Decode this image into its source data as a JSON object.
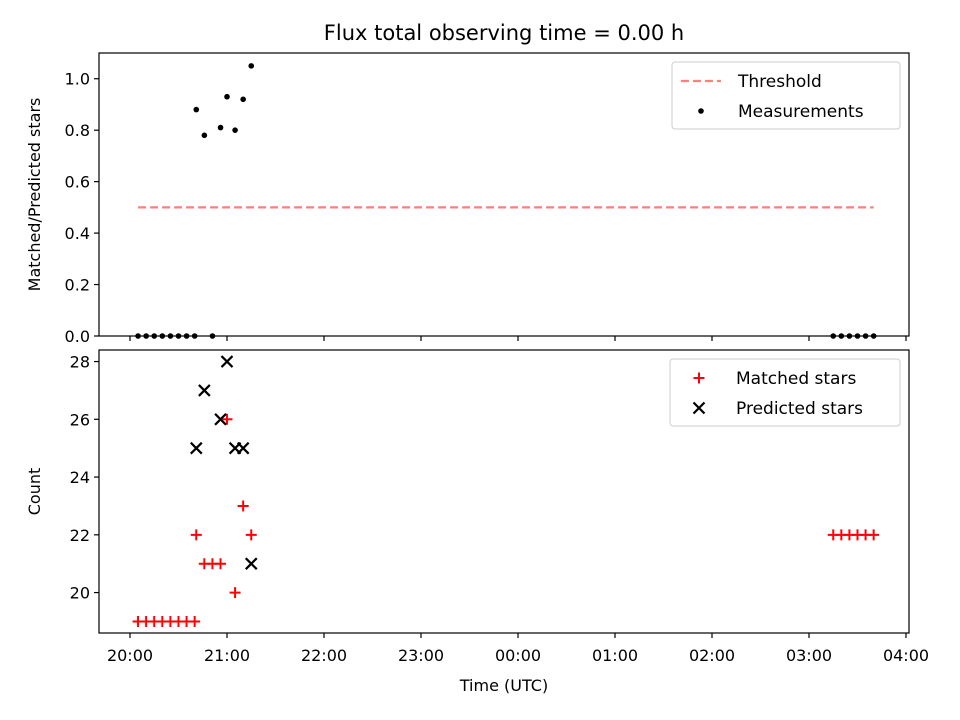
{
  "figure": {
    "title": "Flux total observing time = 0.00 h"
  },
  "chart_data": [
    {
      "type": "scatter",
      "ylabel": "Matched/Predicted stars",
      "xlabel": "",
      "xlim": [
        "20:00",
        "04:00"
      ],
      "ylim": [
        0,
        1.1
      ],
      "yticks": [
        0.0,
        0.2,
        0.4,
        0.6,
        0.8,
        1.0
      ],
      "ytick_labels": [
        "0.0",
        "0.2",
        "0.4",
        "0.6",
        "0.8",
        "1.0"
      ],
      "xticks": [
        "20:00",
        "21:00",
        "22:00",
        "23:00",
        "00:00",
        "01:00",
        "02:00",
        "03:00",
        "04:00"
      ],
      "legend": {
        "placement": "top-right",
        "entries": [
          "Threshold",
          "Measurements"
        ]
      },
      "threshold": {
        "name": "Threshold",
        "value": 0.5,
        "x_range": [
          "20:05",
          "03:40"
        ],
        "color": "#ff7f7f",
        "style": "dashed"
      },
      "series": [
        {
          "name": "Measurements",
          "color": "#000000",
          "marker": "dot",
          "points": [
            [
              "20:05",
              0.0
            ],
            [
              "20:10",
              0.0
            ],
            [
              "20:15",
              0.0
            ],
            [
              "20:20",
              0.0
            ],
            [
              "20:25",
              0.0
            ],
            [
              "20:30",
              0.0
            ],
            [
              "20:35",
              0.0
            ],
            [
              "20:40",
              0.0
            ],
            [
              "20:41",
              0.88
            ],
            [
              "20:46",
              0.78
            ],
            [
              "20:51",
              0.0
            ],
            [
              "20:56",
              0.81
            ],
            [
              "21:00",
              0.93
            ],
            [
              "21:05",
              0.8
            ],
            [
              "21:10",
              0.92
            ],
            [
              "21:15",
              1.05
            ],
            [
              "03:15",
              0.0
            ],
            [
              "03:20",
              0.0
            ],
            [
              "03:25",
              0.0
            ],
            [
              "03:30",
              0.0
            ],
            [
              "03:35",
              0.0
            ],
            [
              "03:40",
              0.0
            ]
          ]
        }
      ]
    },
    {
      "type": "scatter",
      "ylabel": "Count",
      "xlabel": "Time (UTC)",
      "xlim": [
        "20:00",
        "04:00"
      ],
      "ylim": [
        18.6,
        28.4
      ],
      "yticks": [
        20,
        22,
        24,
        26,
        28
      ],
      "ytick_labels": [
        "20",
        "22",
        "24",
        "26",
        "28"
      ],
      "xticks": [
        "20:00",
        "21:00",
        "22:00",
        "23:00",
        "00:00",
        "01:00",
        "02:00",
        "03:00",
        "04:00"
      ],
      "legend": {
        "placement": "top-right",
        "entries": [
          "Matched stars",
          "Predicted stars"
        ]
      },
      "series": [
        {
          "name": "Matched stars",
          "color": "#ff0000",
          "marker": "plus",
          "points": [
            [
              "20:05",
              19
            ],
            [
              "20:10",
              19
            ],
            [
              "20:15",
              19
            ],
            [
              "20:20",
              19
            ],
            [
              "20:25",
              19
            ],
            [
              "20:30",
              19
            ],
            [
              "20:35",
              19
            ],
            [
              "20:40",
              19
            ],
            [
              "20:41",
              22
            ],
            [
              "20:46",
              21
            ],
            [
              "20:51",
              21
            ],
            [
              "20:56",
              21
            ],
            [
              "21:00",
              26
            ],
            [
              "21:05",
              20
            ],
            [
              "21:10",
              23
            ],
            [
              "21:15",
              22
            ],
            [
              "03:15",
              22
            ],
            [
              "03:20",
              22
            ],
            [
              "03:25",
              22
            ],
            [
              "03:30",
              22
            ],
            [
              "03:35",
              22
            ],
            [
              "03:40",
              22
            ]
          ]
        },
        {
          "name": "Predicted stars",
          "color": "#000000",
          "marker": "x",
          "points": [
            [
              "20:41",
              25
            ],
            [
              "20:46",
              27
            ],
            [
              "20:56",
              26
            ],
            [
              "21:00",
              28
            ],
            [
              "21:05",
              25
            ],
            [
              "21:10",
              25
            ],
            [
              "21:15",
              21
            ]
          ]
        }
      ]
    }
  ]
}
